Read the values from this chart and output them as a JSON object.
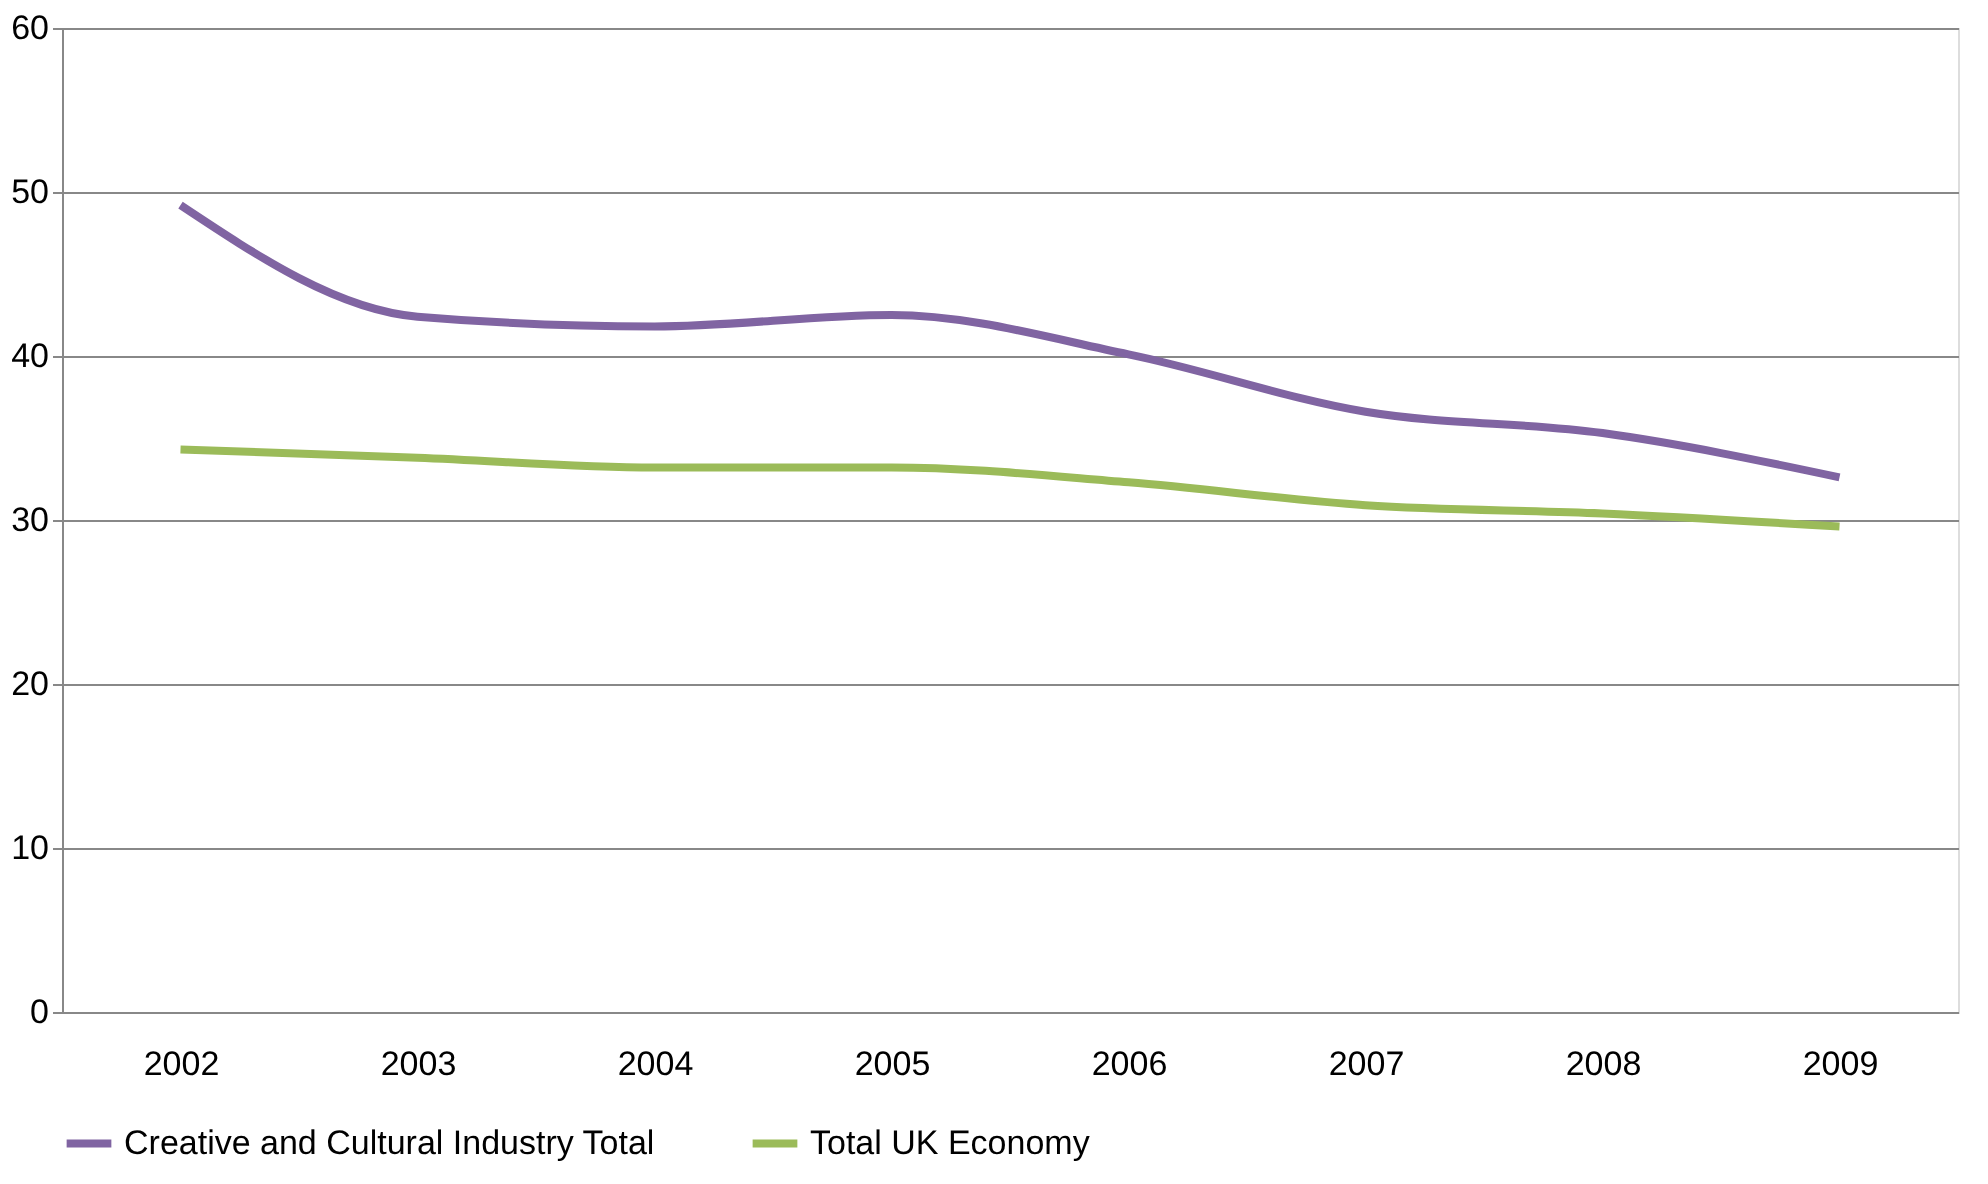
{
  "chart_data": {
    "type": "line",
    "categories": [
      "2002",
      "2003",
      "2004",
      "2005",
      "2006",
      "2007",
      "2008",
      "2009"
    ],
    "series": [
      {
        "name": "Creative and Cultural Industry Total",
        "color": "#8064a2",
        "values": [
          49.2,
          42.4,
          41.8,
          42.5,
          40.1,
          36.6,
          35.3,
          32.6
        ]
      },
      {
        "name": "Total UK Economy",
        "color": "#9bbb59",
        "values": [
          34.3,
          33.8,
          33.2,
          33.2,
          32.3,
          30.9,
          30.4,
          29.6
        ]
      }
    ],
    "ylim": [
      0,
      60
    ],
    "yticks": [
      0,
      10,
      20,
      30,
      40,
      50,
      60
    ],
    "grid": "y",
    "legend": "bottom",
    "marker": "none",
    "line_style": "solid"
  }
}
